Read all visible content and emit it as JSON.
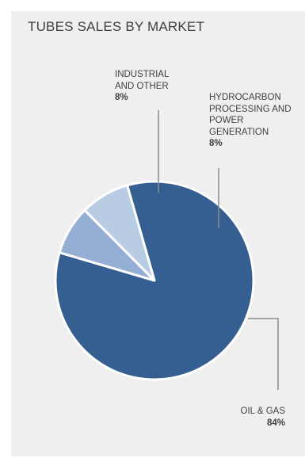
{
  "chart_data": {
    "type": "pie",
    "title": "TUBES SALES BY MARKET",
    "slices": [
      {
        "label": "OIL & GAS",
        "value": 84,
        "value_label": "84%",
        "color": "#355e91"
      },
      {
        "label": "HYDROCARBON\nPROCESSING AND\nPOWER\nGENERATION",
        "value": 8,
        "value_label": "8%",
        "color": "#94afd3"
      },
      {
        "label": "INDUSTRIAL\nAND OTHER",
        "value": 8,
        "value_label": "8%",
        "color": "#b8cce4"
      }
    ],
    "legend": "none",
    "slice_border_color": "#ffffff",
    "leader_line_color": "#8c8c8c",
    "background_color": "#efefef"
  }
}
